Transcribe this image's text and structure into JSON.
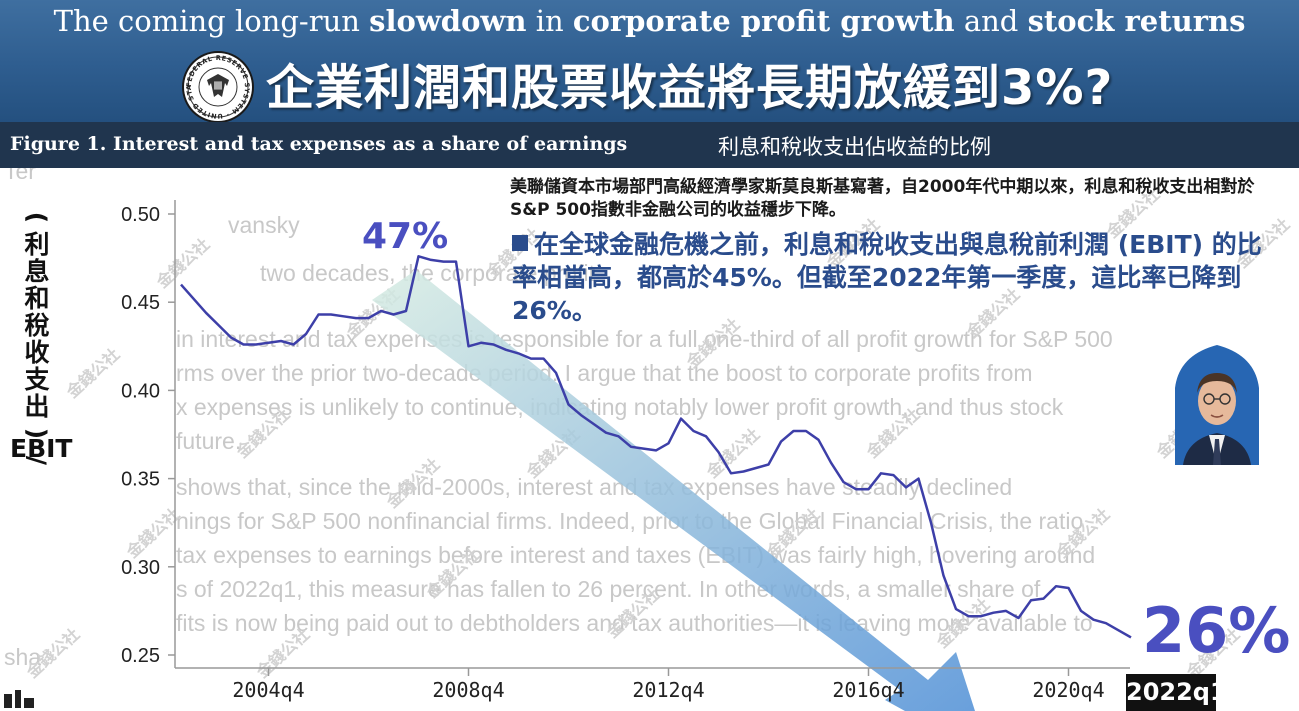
{
  "header": {
    "subtitle_parts": [
      {
        "text": "The coming long-run ",
        "bold": false
      },
      {
        "text": "slowdown",
        "bold": true
      },
      {
        "text": " in ",
        "bold": false
      },
      {
        "text": "corporate profit growth",
        "bold": true
      },
      {
        "text": " and ",
        "bold": false
      },
      {
        "text": "stock returns",
        "bold": true
      }
    ],
    "title_zh": "企業利潤和股票收益將長期放緩到3%?",
    "figure_label_en": "Figure 1. Interest and tax expenses as a share of earnings",
    "figure_label_zh": "利息和稅收支出佔收益的比例",
    "seal_text": "FEDERAL RESERVE SYSTEM · UNITED STATES"
  },
  "notes": {
    "author_note": "美聯儲資本市場部門高級經濟學家斯莫良斯基寫著，自2000年代中期以來，利息和稅收支出相對於S&P 500指數非金融公司的收益穩步下降。",
    "key_point": "在全球金融危機之前，利息和稅收支出與息稅前利潤 (EBIT) 的比率相當高，都高於45%。但截至2022年第一季度，這比率已降到26%。"
  },
  "background_text": [
    "Ter",
    "vansky",
    "two decades, the corporate profit",
    "in interest and tax expenses is responsible for a full one-third of all profit growth for S&P 500",
    "rms over the prior two-decade period. I argue that the boost to corporate profits from",
    "x expenses is unlikely to continue, indicating notably lower profit growth, and thus stock",
    "future.",
    "shows that, since the mid-2000s, interest and tax expenses have steadily declined",
    "nings for S&P 500 nonfinancial firms. Indeed, prior to the Global Financial Crisis, the ratio",
    "tax expenses to earnings before interest and taxes (EBIT) was fairly high, hovering around",
    "s of 2022q1, this measure has fallen to 26 percent. In other words, a smaller share of",
    "fits is now being paid out to debtholders and tax authorities—it is leaving more available to",
    "sha"
  ],
  "watermark": "金錢公社",
  "chart_data": {
    "type": "line",
    "ylabel_zh": "(利息和稅收支出)/",
    "ylabel_en": "EBIT",
    "ylim": [
      0.245,
      0.505
    ],
    "yticks": [
      "0.50",
      "0.45",
      "0.40",
      "0.35",
      "0.30",
      "0.25"
    ],
    "ytick_values": [
      0.5,
      0.45,
      0.4,
      0.35,
      0.3,
      0.25
    ],
    "xticks": [
      "2004q4",
      "2008q4",
      "2012q4",
      "2016q4",
      "2020q4"
    ],
    "xtick_values": [
      2004.75,
      2008.75,
      2012.75,
      2016.75,
      2020.75
    ],
    "xlim": [
      2002.9,
      2022.6
    ],
    "grid": false,
    "series": [
      {
        "color": "#3d3fa8",
        "points": [
          [
            2003.0,
            0.46
          ],
          [
            2003.25,
            0.452
          ],
          [
            2003.5,
            0.444
          ],
          [
            2003.75,
            0.437
          ],
          [
            2004.0,
            0.43
          ],
          [
            2004.25,
            0.426
          ],
          [
            2004.5,
            0.426
          ],
          [
            2004.75,
            0.427
          ],
          [
            2005.0,
            0.428
          ],
          [
            2005.25,
            0.426
          ],
          [
            2005.5,
            0.432
          ],
          [
            2005.75,
            0.443
          ],
          [
            2006.0,
            0.443
          ],
          [
            2006.25,
            0.442
          ],
          [
            2006.5,
            0.441
          ],
          [
            2006.75,
            0.441
          ],
          [
            2007.0,
            0.445
          ],
          [
            2007.25,
            0.443
          ],
          [
            2007.5,
            0.445
          ],
          [
            2007.75,
            0.476
          ],
          [
            2008.0,
            0.474
          ],
          [
            2008.25,
            0.473
          ],
          [
            2008.5,
            0.473
          ],
          [
            2008.75,
            0.425
          ],
          [
            2009.0,
            0.427
          ],
          [
            2009.25,
            0.426
          ],
          [
            2009.5,
            0.423
          ],
          [
            2009.75,
            0.421
          ],
          [
            2010.0,
            0.418
          ],
          [
            2010.25,
            0.418
          ],
          [
            2010.5,
            0.41
          ],
          [
            2010.75,
            0.392
          ],
          [
            2011.0,
            0.386
          ],
          [
            2011.25,
            0.381
          ],
          [
            2011.5,
            0.376
          ],
          [
            2011.75,
            0.374
          ],
          [
            2012.0,
            0.368
          ],
          [
            2012.25,
            0.367
          ],
          [
            2012.5,
            0.366
          ],
          [
            2012.75,
            0.37
          ],
          [
            2013.0,
            0.384
          ],
          [
            2013.25,
            0.377
          ],
          [
            2013.5,
            0.374
          ],
          [
            2013.75,
            0.365
          ],
          [
            2014.0,
            0.353
          ],
          [
            2014.25,
            0.354
          ],
          [
            2014.5,
            0.356
          ],
          [
            2014.75,
            0.358
          ],
          [
            2015.0,
            0.371
          ],
          [
            2015.25,
            0.377
          ],
          [
            2015.5,
            0.377
          ],
          [
            2015.75,
            0.372
          ],
          [
            2016.0,
            0.359
          ],
          [
            2016.25,
            0.348
          ],
          [
            2016.5,
            0.344
          ],
          [
            2016.75,
            0.344
          ],
          [
            2017.0,
            0.353
          ],
          [
            2017.25,
            0.352
          ],
          [
            2017.5,
            0.345
          ],
          [
            2017.75,
            0.35
          ],
          [
            2018.0,
            0.325
          ],
          [
            2018.25,
            0.295
          ],
          [
            2018.5,
            0.276
          ],
          [
            2018.75,
            0.272
          ],
          [
            2019.0,
            0.272
          ],
          [
            2019.25,
            0.274
          ],
          [
            2019.5,
            0.275
          ],
          [
            2019.75,
            0.271
          ],
          [
            2020.0,
            0.281
          ],
          [
            2020.25,
            0.282
          ],
          [
            2020.5,
            0.289
          ],
          [
            2020.75,
            0.288
          ],
          [
            2021.0,
            0.275
          ],
          [
            2021.25,
            0.27
          ],
          [
            2021.5,
            0.268
          ],
          [
            2021.75,
            0.264
          ],
          [
            2022.0,
            0.26
          ]
        ]
      }
    ],
    "annotations": [
      {
        "text": "47%",
        "color": "#4a4fc0"
      },
      {
        "text": "26%",
        "color": "#4a4fc0"
      },
      {
        "text": "2022q1",
        "color": "#ffffff",
        "background": "#111111"
      }
    ],
    "trend_arrow_colors": [
      "#d7ece2",
      "#4f8fd6"
    ]
  }
}
